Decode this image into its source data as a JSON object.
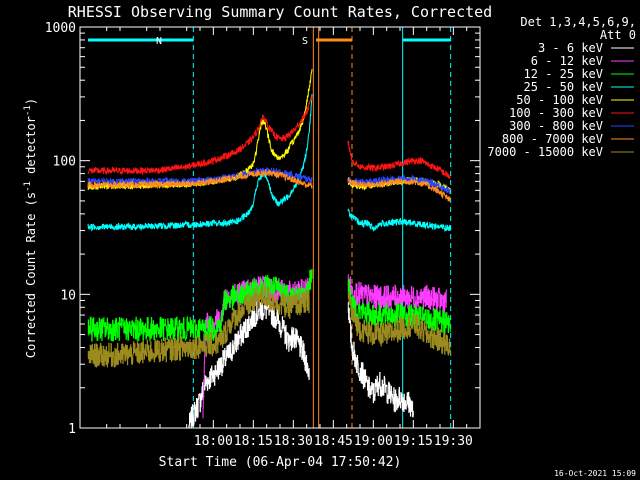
{
  "chart_data": {
    "type": "line",
    "title": "RHESSI Observing Summary Count Rates, Corrected",
    "xlabel": "Start Time (06-Apr-04 17:50:42)",
    "ylabel": "Corrected Count Rate (s⁻¹ detector⁻¹)",
    "ylabel_parts": {
      "main": "Corrected Count Rate (s",
      "exp1": "-1",
      "mid": " detector",
      "exp2": "-1",
      "close": ")"
    },
    "y_scale": "log",
    "ylim": [
      1,
      1000
    ],
    "xlim_minutes": [
      -50,
      100
    ],
    "x_ticks": [
      {
        "t": 0,
        "label": "18:00"
      },
      {
        "t": 15,
        "label": "18:15"
      },
      {
        "t": 30,
        "label": "18:30"
      },
      {
        "t": 45,
        "label": "18:45"
      },
      {
        "t": 60,
        "label": "19:00"
      },
      {
        "t": 75,
        "label": "19:15"
      },
      {
        "t": 90,
        "label": "19:30"
      }
    ],
    "x_axis_note": "x values are minutes relative to 18:00",
    "y_ticks": [
      {
        "v": 1,
        "label": "1"
      },
      {
        "v": 10,
        "label": "10"
      },
      {
        "v": 100,
        "label": "100"
      },
      {
        "v": 1000,
        "label": "1000"
      }
    ],
    "legend_header": [
      "Det 1,3,4,5,6,9,",
      "Att 0"
    ],
    "legend_position": "right",
    "series": [
      {
        "name": "3 - 6 keV",
        "color": "#ffffff",
        "pre": [
          [
            -9.3,
            1
          ],
          [
            -8,
            1.2
          ],
          [
            -5,
            1.6
          ],
          [
            -3,
            2.2
          ],
          [
            0,
            2.5
          ],
          [
            3,
            3.0
          ],
          [
            6,
            3.6
          ],
          [
            9,
            4.5
          ],
          [
            12,
            5.5
          ],
          [
            15,
            6.8
          ],
          [
            17,
            7.6
          ],
          [
            19,
            7.8
          ],
          [
            21,
            7.5
          ],
          [
            24,
            6.5
          ],
          [
            26,
            5.5
          ],
          [
            28,
            4.5
          ],
          [
            30,
            4.8
          ],
          [
            32,
            4.2
          ],
          [
            34,
            3.5
          ],
          [
            35,
            3.0
          ],
          [
            36,
            2.6
          ]
        ],
        "post": [
          [
            50.5,
            9.5
          ],
          [
            51,
            6
          ],
          [
            52,
            4
          ],
          [
            54,
            3
          ],
          [
            56,
            2.5
          ],
          [
            58,
            2
          ],
          [
            60,
            1.8
          ],
          [
            62,
            2.2
          ],
          [
            64,
            2.0
          ],
          [
            66,
            1.8
          ],
          [
            68,
            1.6
          ],
          [
            70,
            1.7
          ],
          [
            72,
            1.6
          ],
          [
            74,
            1.5
          ],
          [
            75,
            1.3
          ]
        ]
      },
      {
        "name": "6 - 12 keV",
        "color": "#ff3cff",
        "pre": [
          [
            -4,
            1
          ],
          [
            -3,
            6
          ],
          [
            3,
            6.5
          ],
          [
            4,
            9.5
          ],
          [
            8,
            10
          ],
          [
            12,
            10.5
          ],
          [
            15,
            11
          ],
          [
            18,
            11.5
          ],
          [
            21,
            11
          ],
          [
            24,
            10.5
          ],
          [
            27,
            10.5
          ],
          [
            30,
            10
          ],
          [
            33,
            10.5
          ],
          [
            35,
            11
          ],
          [
            36,
            11.5
          ]
        ],
        "post": [
          [
            50.5,
            12
          ],
          [
            52,
            10.5
          ],
          [
            55,
            10
          ],
          [
            60,
            9.5
          ],
          [
            65,
            9.5
          ],
          [
            70,
            9.5
          ],
          [
            75,
            9.5
          ],
          [
            80,
            9.5
          ],
          [
            85,
            9
          ],
          [
            87.5,
            9
          ]
        ]
      },
      {
        "name": "12 - 25 keV",
        "color": "#00ff00",
        "pre": [
          [
            -47,
            5.5
          ],
          [
            -30,
            5.5
          ],
          [
            -15,
            5.5
          ],
          [
            0,
            5.5
          ],
          [
            3,
            6
          ],
          [
            4,
            9
          ],
          [
            8,
            9.5
          ],
          [
            12,
            10
          ],
          [
            16,
            11
          ],
          [
            20,
            11.5
          ],
          [
            24,
            11
          ],
          [
            28,
            10
          ],
          [
            32,
            9.5
          ],
          [
            35,
            10
          ],
          [
            37,
            15
          ]
        ],
        "post": [
          [
            50.5,
            12
          ],
          [
            52,
            8
          ],
          [
            55,
            7.5
          ],
          [
            60,
            7
          ],
          [
            65,
            7
          ],
          [
            70,
            7
          ],
          [
            75,
            6.8
          ],
          [
            80,
            6.5
          ],
          [
            85,
            6.2
          ],
          [
            89,
            6
          ]
        ]
      },
      {
        "name": "25 - 50 keV",
        "color": "#00ffff",
        "pre": [
          [
            -47,
            32
          ],
          [
            -30,
            32
          ],
          [
            -10,
            33
          ],
          [
            0,
            34
          ],
          [
            6,
            34
          ],
          [
            10,
            36
          ],
          [
            13,
            40
          ],
          [
            15,
            48
          ],
          [
            16,
            60
          ],
          [
            17,
            72
          ],
          [
            19,
            80
          ],
          [
            20,
            76
          ],
          [
            21,
            66
          ],
          [
            22,
            55
          ],
          [
            24,
            48
          ],
          [
            26,
            50
          ],
          [
            28,
            54
          ],
          [
            30,
            62
          ],
          [
            32,
            72
          ],
          [
            34,
            95
          ],
          [
            35,
            120
          ],
          [
            36,
            170
          ],
          [
            37,
            300
          ]
        ],
        "post": [
          [
            50.5,
            42
          ],
          [
            52,
            38
          ],
          [
            55,
            34
          ],
          [
            58,
            34
          ],
          [
            60,
            31
          ],
          [
            63,
            34
          ],
          [
            66,
            34
          ],
          [
            70,
            35
          ],
          [
            75,
            34
          ],
          [
            80,
            33
          ],
          [
            85,
            32
          ],
          [
            89,
            31
          ]
        ]
      },
      {
        "name": "50 - 100 keV",
        "color": "#ffff00",
        "pre": [
          [
            -47,
            64
          ],
          [
            -30,
            65
          ],
          [
            -10,
            67
          ],
          [
            0,
            70
          ],
          [
            8,
            75
          ],
          [
            12,
            82
          ],
          [
            15,
            95
          ],
          [
            16,
            115
          ],
          [
            17,
            150
          ],
          [
            18,
            190
          ],
          [
            19,
            200
          ],
          [
            20,
            170
          ],
          [
            21,
            140
          ],
          [
            22,
            118
          ],
          [
            24,
            105
          ],
          [
            26,
            108
          ],
          [
            28,
            120
          ],
          [
            30,
            140
          ],
          [
            32,
            165
          ],
          [
            34,
            210
          ],
          [
            35,
            270
          ],
          [
            36,
            360
          ],
          [
            37,
            480
          ]
        ],
        "post": [
          [
            50.5,
            70
          ],
          [
            52,
            66
          ],
          [
            55,
            64
          ],
          [
            60,
            66
          ],
          [
            65,
            68
          ],
          [
            70,
            70
          ],
          [
            75,
            72
          ],
          [
            80,
            70
          ],
          [
            85,
            66
          ],
          [
            89,
            60
          ]
        ]
      },
      {
        "name": "100 - 300 keV",
        "color": "#ff1414",
        "pre": [
          [
            -47,
            84
          ],
          [
            -30,
            84
          ],
          [
            -20,
            85
          ],
          [
            -10,
            90
          ],
          [
            0,
            100
          ],
          [
            8,
            115
          ],
          [
            12,
            130
          ],
          [
            15,
            150
          ],
          [
            17,
            175
          ],
          [
            18,
            205
          ],
          [
            19,
            210
          ],
          [
            20,
            195
          ],
          [
            21,
            175
          ],
          [
            23,
            155
          ],
          [
            25,
            145
          ],
          [
            27,
            148
          ],
          [
            29,
            160
          ],
          [
            31,
            175
          ],
          [
            33,
            200
          ],
          [
            35,
            230
          ],
          [
            36,
            260
          ],
          [
            37,
            300
          ]
        ],
        "post": [
          [
            50.5,
            140
          ],
          [
            52,
            100
          ],
          [
            55,
            90
          ],
          [
            60,
            88
          ],
          [
            65,
            90
          ],
          [
            70,
            95
          ],
          [
            75,
            100
          ],
          [
            78,
            100
          ],
          [
            80,
            95
          ],
          [
            85,
            85
          ],
          [
            89,
            75
          ]
        ]
      },
      {
        "name": "300 - 800 keV",
        "color": "#2846ff",
        "pre": [
          [
            -47,
            70
          ],
          [
            -30,
            70
          ],
          [
            -10,
            70
          ],
          [
            0,
            72
          ],
          [
            10,
            78
          ],
          [
            15,
            82
          ],
          [
            20,
            84
          ],
          [
            25,
            82
          ],
          [
            30,
            78
          ],
          [
            33,
            75
          ],
          [
            35,
            73
          ],
          [
            37,
            72
          ]
        ],
        "post": [
          [
            50.5,
            72
          ],
          [
            52,
            70
          ],
          [
            55,
            69
          ],
          [
            60,
            70
          ],
          [
            65,
            72
          ],
          [
            70,
            73
          ],
          [
            75,
            73
          ],
          [
            80,
            70
          ],
          [
            85,
            65
          ],
          [
            89,
            58
          ]
        ]
      },
      {
        "name": "800 - 7000 keV",
        "color": "#ff8c1e",
        "pre": [
          [
            -47,
            66
          ],
          [
            -30,
            66
          ],
          [
            -10,
            67
          ],
          [
            0,
            70
          ],
          [
            10,
            76
          ],
          [
            15,
            80
          ],
          [
            20,
            82
          ],
          [
            25,
            78
          ],
          [
            30,
            72
          ],
          [
            33,
            68
          ],
          [
            35,
            66
          ],
          [
            37,
            65
          ]
        ],
        "post": [
          [
            50.5,
            72
          ],
          [
            52,
            68
          ],
          [
            55,
            66
          ],
          [
            60,
            66
          ],
          [
            65,
            68
          ],
          [
            70,
            70
          ],
          [
            75,
            70
          ],
          [
            80,
            66
          ],
          [
            85,
            58
          ],
          [
            89,
            50
          ]
        ]
      },
      {
        "name": "7000 - 15000 keV",
        "color": "#9b8b1e",
        "pre": [
          [
            -47,
            3.5
          ],
          [
            -35,
            3.5
          ],
          [
            -20,
            3.8
          ],
          [
            -10,
            4.0
          ],
          [
            0,
            4.2
          ],
          [
            3,
            4.5
          ],
          [
            6,
            6
          ],
          [
            10,
            7.5
          ],
          [
            14,
            8.5
          ],
          [
            17,
            9.5
          ],
          [
            19,
            9.8
          ],
          [
            22,
            9
          ],
          [
            25,
            8.5
          ],
          [
            28,
            8
          ],
          [
            31,
            8.5
          ],
          [
            34,
            8.5
          ],
          [
            36,
            9
          ]
        ],
        "post": [
          [
            50.5,
            10
          ],
          [
            52,
            7
          ],
          [
            55,
            5.5
          ],
          [
            60,
            5
          ],
          [
            65,
            5
          ],
          [
            70,
            5.5
          ],
          [
            75,
            6
          ],
          [
            80,
            5
          ],
          [
            85,
            4.5
          ],
          [
            89,
            4
          ]
        ]
      }
    ],
    "annotations": [
      {
        "label": "N",
        "color": "#00ffff",
        "intervals": [
          [
            -47,
            -7.5
          ],
          [
            71,
            89
          ]
        ],
        "dashed_lines": [
          -7.5,
          89
        ],
        "solid_lines": [
          71
        ]
      },
      {
        "label": "S",
        "color": "#ff8c1e",
        "intervals": [
          [
            38.5,
            52
          ]
        ],
        "dashed_lines": [
          52
        ],
        "solid_lines": [
          37.5,
          39.5
        ]
      }
    ],
    "grid": false
  },
  "footer": {
    "timestamp": "16-Oct-2021 15:09"
  }
}
